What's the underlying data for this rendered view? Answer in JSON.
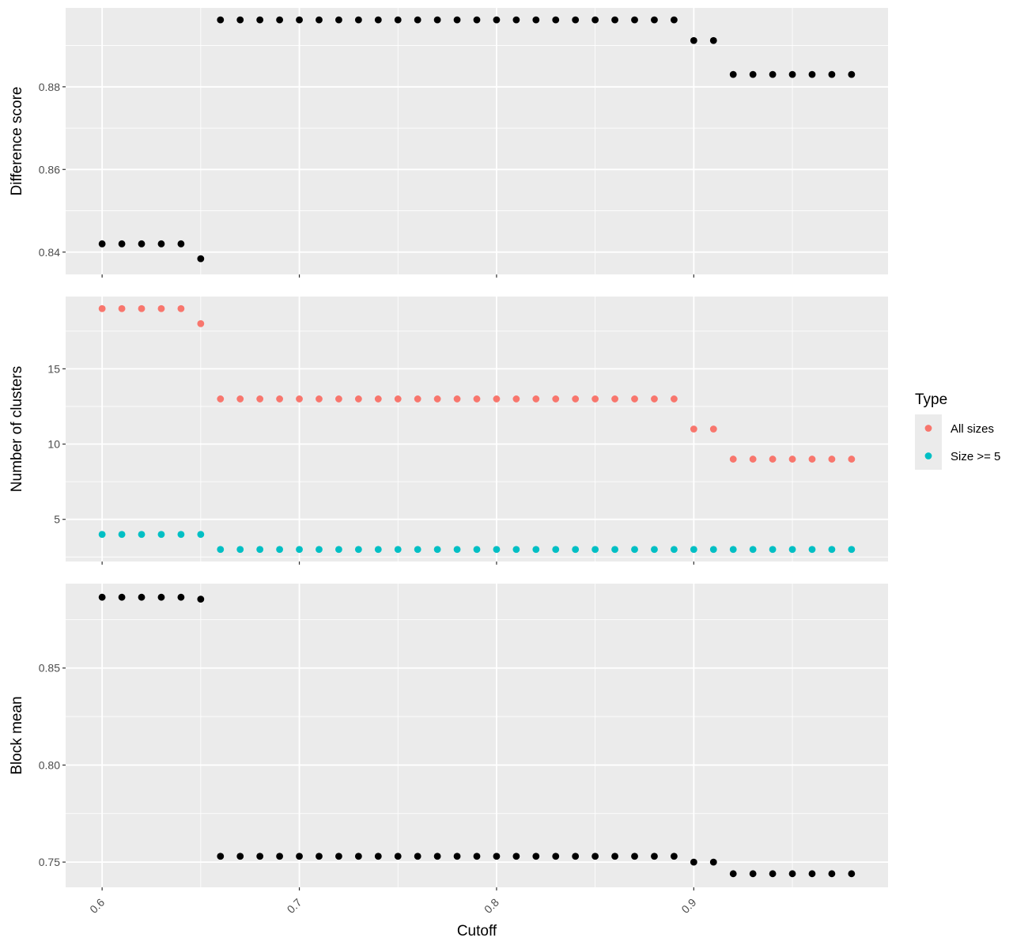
{
  "colors": {
    "panel_bg": "#ebebeb",
    "grid": "#ffffff",
    "tick": "#333333",
    "black_points": "#000000",
    "all_sizes": "#f8766d",
    "size_ge_5": "#00bfc4"
  },
  "x_axis": {
    "label": "Cutoff",
    "ticks": [
      0.6,
      0.7,
      0.8,
      0.9
    ],
    "tick_labels": [
      "0.6",
      "0.7",
      "0.8",
      "0.9"
    ],
    "minor_ticks": [
      0.65,
      0.75,
      0.85,
      0.95
    ],
    "range": [
      0.5815,
      0.9985
    ]
  },
  "legend": {
    "title": "Type",
    "items": [
      {
        "label": "All sizes",
        "color": "#f8766d"
      },
      {
        "label": "Size >= 5",
        "color": "#00bfc4"
      }
    ]
  },
  "chart_data": [
    {
      "type": "scatter",
      "ylabel": "Difference score",
      "ylim": [
        0.8346,
        0.8991
      ],
      "y_ticks": [
        0.84,
        0.86,
        0.88
      ],
      "y_tick_labels": [
        "0.84",
        "0.86",
        "0.88"
      ],
      "y_minor_ticks": [
        0.85,
        0.87,
        0.89
      ],
      "series": [
        {
          "color": "#000000",
          "x": [
            0.6,
            0.61,
            0.62,
            0.63,
            0.64,
            0.65,
            0.66,
            0.67,
            0.68,
            0.69,
            0.7,
            0.71,
            0.72,
            0.73,
            0.74,
            0.75,
            0.76,
            0.77,
            0.78,
            0.79,
            0.8,
            0.81,
            0.82,
            0.83,
            0.84,
            0.85,
            0.86,
            0.87,
            0.88,
            0.89,
            0.9,
            0.91,
            0.92,
            0.93,
            0.94,
            0.95,
            0.96,
            0.97,
            0.98
          ],
          "y": [
            0.842,
            0.842,
            0.842,
            0.842,
            0.842,
            0.8384,
            0.8962,
            0.8962,
            0.8962,
            0.8962,
            0.8962,
            0.8962,
            0.8962,
            0.8962,
            0.8962,
            0.8962,
            0.8962,
            0.8962,
            0.8962,
            0.8962,
            0.8962,
            0.8962,
            0.8962,
            0.8962,
            0.8962,
            0.8962,
            0.8962,
            0.8962,
            0.8962,
            0.8962,
            0.8912,
            0.8912,
            0.883,
            0.883,
            0.883,
            0.883,
            0.883,
            0.883,
            0.883
          ]
        }
      ]
    },
    {
      "type": "scatter",
      "ylabel": "Number of clusters",
      "ylim": [
        2.2,
        19.8
      ],
      "y_ticks": [
        5,
        10,
        15
      ],
      "y_tick_labels": [
        "5",
        "10",
        "15"
      ],
      "y_minor_ticks": [
        2.5,
        7.5,
        12.5,
        17.5
      ],
      "series": [
        {
          "name": "All sizes",
          "color": "#f8766d",
          "x": [
            0.6,
            0.61,
            0.62,
            0.63,
            0.64,
            0.65,
            0.66,
            0.67,
            0.68,
            0.69,
            0.7,
            0.71,
            0.72,
            0.73,
            0.74,
            0.75,
            0.76,
            0.77,
            0.78,
            0.79,
            0.8,
            0.81,
            0.82,
            0.83,
            0.84,
            0.85,
            0.86,
            0.87,
            0.88,
            0.89,
            0.9,
            0.91,
            0.92,
            0.93,
            0.94,
            0.95,
            0.96,
            0.97,
            0.98
          ],
          "y": [
            19,
            19,
            19,
            19,
            19,
            18,
            13,
            13,
            13,
            13,
            13,
            13,
            13,
            13,
            13,
            13,
            13,
            13,
            13,
            13,
            13,
            13,
            13,
            13,
            13,
            13,
            13,
            13,
            13,
            13,
            11,
            11,
            9,
            9,
            9,
            9,
            9,
            9,
            9
          ]
        },
        {
          "name": "Size >= 5",
          "color": "#00bfc4",
          "x": [
            0.6,
            0.61,
            0.62,
            0.63,
            0.64,
            0.65,
            0.66,
            0.67,
            0.68,
            0.69,
            0.7,
            0.71,
            0.72,
            0.73,
            0.74,
            0.75,
            0.76,
            0.77,
            0.78,
            0.79,
            0.8,
            0.81,
            0.82,
            0.83,
            0.84,
            0.85,
            0.86,
            0.87,
            0.88,
            0.89,
            0.9,
            0.91,
            0.92,
            0.93,
            0.94,
            0.95,
            0.96,
            0.97,
            0.98
          ],
          "y": [
            4,
            4,
            4,
            4,
            4,
            4,
            3,
            3,
            3,
            3,
            3,
            3,
            3,
            3,
            3,
            3,
            3,
            3,
            3,
            3,
            3,
            3,
            3,
            3,
            3,
            3,
            3,
            3,
            3,
            3,
            3,
            3,
            3,
            3,
            3,
            3,
            3,
            3,
            3
          ]
        }
      ]
    },
    {
      "type": "scatter",
      "ylabel": "Block mean",
      "xlabel": "Cutoff",
      "ylim": [
        0.737,
        0.8935
      ],
      "y_ticks": [
        0.75,
        0.8,
        0.85
      ],
      "y_tick_labels": [
        "0.75",
        "0.80",
        "0.85"
      ],
      "y_minor_ticks": [
        0.775,
        0.825,
        0.875
      ],
      "series": [
        {
          "color": "#000000",
          "x": [
            0.6,
            0.61,
            0.62,
            0.63,
            0.64,
            0.65,
            0.66,
            0.67,
            0.68,
            0.69,
            0.7,
            0.71,
            0.72,
            0.73,
            0.74,
            0.75,
            0.76,
            0.77,
            0.78,
            0.79,
            0.8,
            0.81,
            0.82,
            0.83,
            0.84,
            0.85,
            0.86,
            0.87,
            0.88,
            0.89,
            0.9,
            0.91,
            0.92,
            0.93,
            0.94,
            0.95,
            0.96,
            0.97,
            0.98
          ],
          "y": [
            0.8865,
            0.8865,
            0.8865,
            0.8865,
            0.8865,
            0.8855,
            0.753,
            0.753,
            0.753,
            0.753,
            0.753,
            0.753,
            0.753,
            0.753,
            0.753,
            0.753,
            0.753,
            0.753,
            0.753,
            0.753,
            0.753,
            0.753,
            0.753,
            0.753,
            0.753,
            0.753,
            0.753,
            0.753,
            0.753,
            0.753,
            0.75,
            0.75,
            0.744,
            0.744,
            0.744,
            0.744,
            0.744,
            0.744,
            0.744
          ]
        }
      ]
    }
  ]
}
